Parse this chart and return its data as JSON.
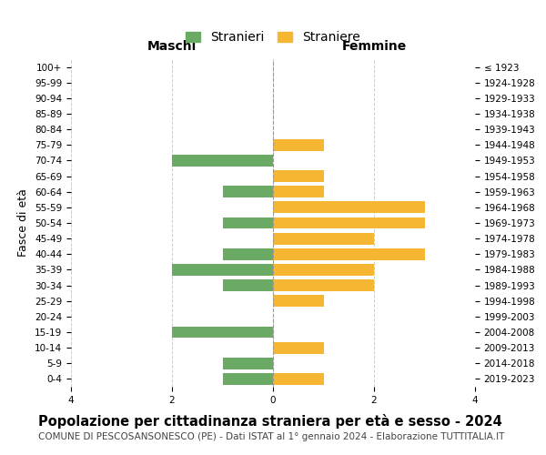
{
  "age_groups": [
    "100+",
    "95-99",
    "90-94",
    "85-89",
    "80-84",
    "75-79",
    "70-74",
    "65-69",
    "60-64",
    "55-59",
    "50-54",
    "45-49",
    "40-44",
    "35-39",
    "30-34",
    "25-29",
    "20-24",
    "15-19",
    "10-14",
    "5-9",
    "0-4"
  ],
  "birth_years": [
    "≤ 1923",
    "1924-1928",
    "1929-1933",
    "1934-1938",
    "1939-1943",
    "1944-1948",
    "1949-1953",
    "1954-1958",
    "1959-1963",
    "1964-1968",
    "1969-1973",
    "1974-1978",
    "1979-1983",
    "1984-1988",
    "1989-1993",
    "1994-1998",
    "1999-2003",
    "2004-2008",
    "2009-2013",
    "2014-2018",
    "2019-2023"
  ],
  "maschi": [
    0,
    0,
    0,
    0,
    0,
    0,
    2,
    0,
    1,
    0,
    1,
    0,
    1,
    2,
    1,
    0,
    0,
    2,
    0,
    1,
    1
  ],
  "femmine": [
    0,
    0,
    0,
    0,
    0,
    1,
    0,
    1,
    1,
    3,
    3,
    2,
    3,
    2,
    2,
    1,
    0,
    0,
    1,
    0,
    1
  ],
  "color_maschi": "#6aaa64",
  "color_femmine": "#f5b731",
  "xlim": 4,
  "title": "Popolazione per cittadinanza straniera per età e sesso - 2024",
  "subtitle": "COMUNE DI PESCOSANSONESCO (PE) - Dati ISTAT al 1° gennaio 2024 - Elaborazione TUTTITALIA.IT",
  "ylabel_left": "Fasce di età",
  "legend_maschi": "Stranieri",
  "legend_femmine": "Straniere",
  "header_maschi": "Maschi",
  "header_femmine": "Femmine",
  "background_color": "#ffffff",
  "grid_color": "#cccccc",
  "title_fontsize": 10.5,
  "subtitle_fontsize": 7.5,
  "tick_fontsize": 7.5,
  "label_fontsize": 9
}
